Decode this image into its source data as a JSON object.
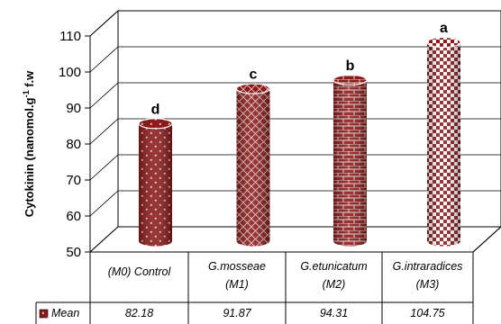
{
  "chart_data": {
    "type": "bar",
    "style": "3d-cylinder",
    "ylabel": "Cytokinin (nanomol.g",
    "ylabel_superscript": "-1",
    "ylabel_suffix": " f.w",
    "ylim": [
      50,
      110
    ],
    "yticks": [
      50,
      60,
      70,
      80,
      90,
      100,
      110
    ],
    "grid": true,
    "categories": [
      [
        "(M0)  Control"
      ],
      [
        "G.mosseae",
        "(M1)"
      ],
      [
        "G.etunicatum",
        "(M2)"
      ],
      [
        "G.intraradices",
        "(M3)"
      ]
    ],
    "series": [
      {
        "name": "Mean",
        "values": [
          82.18,
          91.87,
          94.31,
          104.75
        ],
        "value_labels": [
          "82.18",
          "91.87",
          "94.31",
          "104.75"
        ],
        "significance": [
          "d",
          "c",
          "b",
          "a"
        ],
        "color": "#8b1a1a",
        "patterns": [
          "dots",
          "diagonal-crosshatch",
          "brick",
          "checker"
        ]
      }
    ]
  }
}
